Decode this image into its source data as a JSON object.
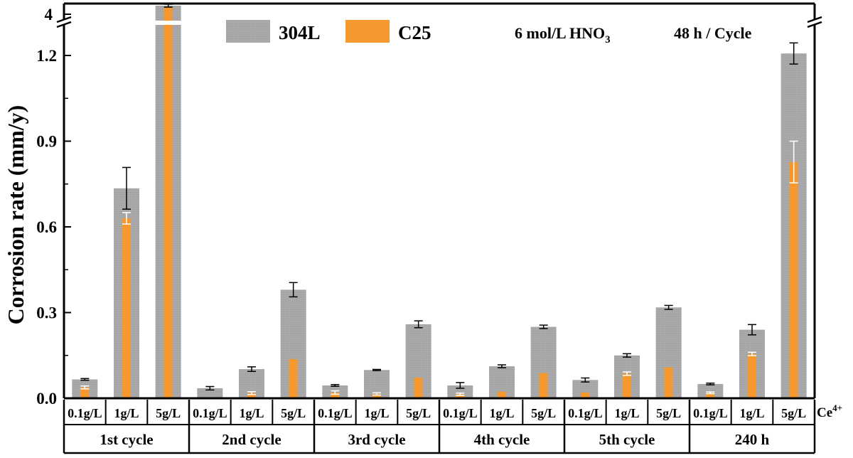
{
  "chart_data": {
    "type": "bar",
    "ylabel": "Corrosion rate (mm/y)",
    "y_ticks": [
      "0.0",
      "0.3",
      "0.6",
      "0.9",
      "1.2",
      "4"
    ],
    "ylim": [
      0,
      1.3
    ],
    "y_break": {
      "from": 1.3,
      "to": 4,
      "top_tick": 4
    },
    "legend": {
      "placement": "top",
      "entries": [
        {
          "name": "304L",
          "color": "#a6a6a6"
        },
        {
          "name": "C25",
          "color": "#f7982f"
        }
      ],
      "annotations": [
        {
          "text": "6 mol/L HNO",
          "sub": "3"
        },
        {
          "text": "48 h / Cycle"
        }
      ]
    },
    "concentration_axis_label": "Ce",
    "concentration_axis_sup": "4+",
    "groups": [
      {
        "label": "1st cycle",
        "categories": [
          "0.1g/L",
          "1g/L",
          "5g/L"
        ],
        "s304L": [
          0.066,
          0.735,
          4.3
        ],
        "s304L_err": [
          0.003,
          0.073,
          0.05
        ],
        "c25": [
          0.038,
          0.63,
          4.25
        ],
        "c25_err": [
          0.005,
          0.02,
          0.0
        ]
      },
      {
        "label": "2nd cycle",
        "categories": [
          "0.1g/L",
          "1g/L",
          "5g/L"
        ],
        "s304L": [
          0.035,
          0.102,
          0.38
        ],
        "s304L_err": [
          0.006,
          0.008,
          0.025
        ],
        "c25": [
          0.004,
          0.018,
          0.137
        ],
        "c25_err": [
          0.0,
          0.005,
          0.0
        ]
      },
      {
        "label": "3rd cycle",
        "categories": [
          "0.1g/L",
          "1g/L",
          "5g/L"
        ],
        "s304L": [
          0.045,
          0.099,
          0.259
        ],
        "s304L_err": [
          0.003,
          0.002,
          0.012
        ],
        "c25": [
          0.02,
          0.015,
          0.072
        ],
        "c25_err": [
          0.006,
          0.004,
          0.0
        ]
      },
      {
        "label": "4th cycle",
        "categories": [
          "0.1g/L",
          "1g/L",
          "5g/L"
        ],
        "s304L": [
          0.045,
          0.112,
          0.25
        ],
        "s304L_err": [
          0.01,
          0.005,
          0.006
        ],
        "c25": [
          0.014,
          0.023,
          0.088
        ],
        "c25_err": [
          0.004,
          0.0,
          0.0
        ]
      },
      {
        "label": "5th cycle",
        "categories": [
          "0.1g/L",
          "1g/L",
          "5g/L"
        ],
        "s304L": [
          0.064,
          0.15,
          0.318
        ],
        "s304L_err": [
          0.007,
          0.006,
          0.007
        ],
        "c25": [
          0.02,
          0.086,
          0.108
        ],
        "c25_err": [
          0.0,
          0.006,
          0.0
        ]
      },
      {
        "label": "240 h",
        "categories": [
          "0.1g/L",
          "1g/L",
          "5g/L"
        ],
        "s304L": [
          0.05,
          0.24,
          1.207
        ],
        "s304L_err": [
          0.003,
          0.018,
          0.037
        ],
        "c25": [
          0.019,
          0.155,
          0.827
        ],
        "c25_err": [
          0.003,
          0.006,
          0.073
        ]
      }
    ]
  }
}
